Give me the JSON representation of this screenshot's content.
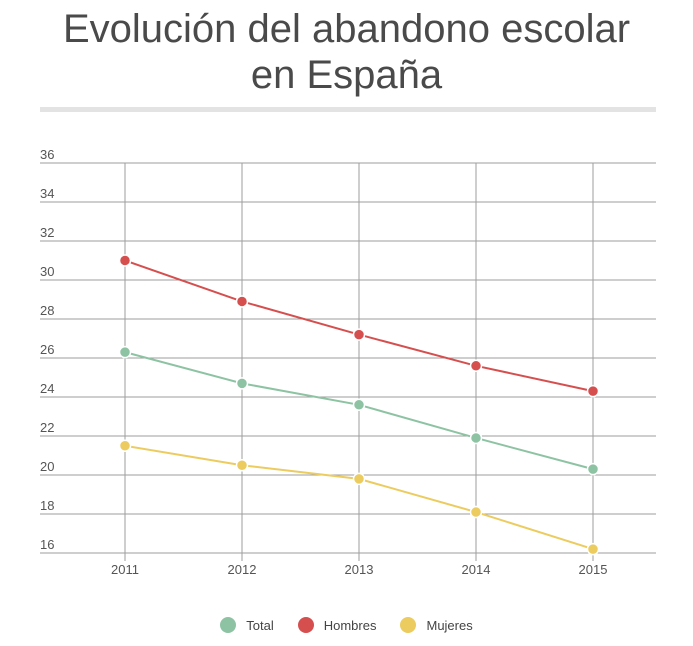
{
  "chart_data": {
    "type": "line",
    "title_line1": "Evolución del abandono escolar",
    "title_line2": "en España",
    "categories": [
      "2011",
      "2012",
      "2013",
      "2014",
      "2015"
    ],
    "series": [
      {
        "name": "Total",
        "color": "#8dc3a3",
        "values": [
          26.3,
          24.7,
          23.6,
          21.9,
          20.3
        ]
      },
      {
        "name": "Hombres",
        "color": "#d64f4f",
        "values": [
          31.0,
          28.9,
          27.2,
          25.6,
          24.3
        ]
      },
      {
        "name": "Mujeres",
        "color": "#eccb5f",
        "values": [
          21.5,
          20.5,
          19.8,
          18.1,
          16.2
        ]
      }
    ],
    "y_ticks": [
      "36",
      "34",
      "32",
      "30",
      "28",
      "26",
      "24",
      "22",
      "20",
      "18",
      "16"
    ],
    "ylim": [
      16,
      36
    ],
    "xlabel": "",
    "ylabel": "",
    "grid": true,
    "legend_position": "bottom"
  }
}
